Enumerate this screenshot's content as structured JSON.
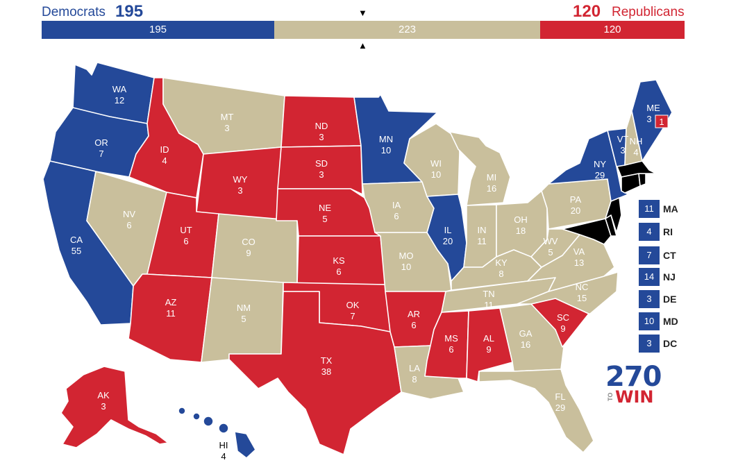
{
  "header": {
    "dem_name": "Democrats",
    "dem_total": "195",
    "rep_total": "120",
    "rep_name": "Republicans"
  },
  "bar": {
    "dem": "195",
    "tossup": "223",
    "rep": "120"
  },
  "colors": {
    "dem": "#244999",
    "rep": "#d22532",
    "tossup": "#c9bf9c"
  },
  "states": {
    "WA": {
      "abbr": "WA",
      "ev": "12",
      "party": "dem"
    },
    "OR": {
      "abbr": "OR",
      "ev": "7",
      "party": "dem"
    },
    "CA": {
      "abbr": "CA",
      "ev": "55",
      "party": "dem"
    },
    "ID": {
      "abbr": "ID",
      "ev": "4",
      "party": "rep"
    },
    "NV": {
      "abbr": "NV",
      "ev": "6",
      "party": "tossup"
    },
    "MT": {
      "abbr": "MT",
      "ev": "3",
      "party": "tossup"
    },
    "WY": {
      "abbr": "WY",
      "ev": "3",
      "party": "rep"
    },
    "UT": {
      "abbr": "UT",
      "ev": "6",
      "party": "rep"
    },
    "AZ": {
      "abbr": "AZ",
      "ev": "11",
      "party": "rep"
    },
    "CO": {
      "abbr": "CO",
      "ev": "9",
      "party": "tossup"
    },
    "NM": {
      "abbr": "NM",
      "ev": "5",
      "party": "tossup"
    },
    "ND": {
      "abbr": "ND",
      "ev": "3",
      "party": "rep"
    },
    "SD": {
      "abbr": "SD",
      "ev": "3",
      "party": "rep"
    },
    "NE": {
      "abbr": "NE",
      "ev": "5",
      "party": "rep"
    },
    "KS": {
      "abbr": "KS",
      "ev": "6",
      "party": "rep"
    },
    "OK": {
      "abbr": "OK",
      "ev": "7",
      "party": "rep"
    },
    "TX": {
      "abbr": "TX",
      "ev": "38",
      "party": "rep"
    },
    "MN": {
      "abbr": "MN",
      "ev": "10",
      "party": "dem"
    },
    "IA": {
      "abbr": "IA",
      "ev": "6",
      "party": "tossup"
    },
    "MO": {
      "abbr": "MO",
      "ev": "10",
      "party": "tossup"
    },
    "AR": {
      "abbr": "AR",
      "ev": "6",
      "party": "rep"
    },
    "LA": {
      "abbr": "LA",
      "ev": "8",
      "party": "tossup"
    },
    "WI": {
      "abbr": "WI",
      "ev": "10",
      "party": "tossup"
    },
    "IL": {
      "abbr": "IL",
      "ev": "20",
      "party": "dem"
    },
    "MI": {
      "abbr": "MI",
      "ev": "16",
      "party": "tossup"
    },
    "IN": {
      "abbr": "IN",
      "ev": "11",
      "party": "tossup"
    },
    "OH": {
      "abbr": "OH",
      "ev": "18",
      "party": "tossup"
    },
    "KY": {
      "abbr": "KY",
      "ev": "8",
      "party": "tossup"
    },
    "TN": {
      "abbr": "TN",
      "ev": "11",
      "party": "tossup"
    },
    "MS": {
      "abbr": "MS",
      "ev": "6",
      "party": "rep"
    },
    "AL": {
      "abbr": "AL",
      "ev": "9",
      "party": "rep"
    },
    "GA": {
      "abbr": "GA",
      "ev": "16",
      "party": "tossup"
    },
    "FL": {
      "abbr": "FL",
      "ev": "29",
      "party": "tossup"
    },
    "SC": {
      "abbr": "SC",
      "ev": "9",
      "party": "rep"
    },
    "NC": {
      "abbr": "NC",
      "ev": "15",
      "party": "tossup"
    },
    "VA": {
      "abbr": "VA",
      "ev": "13",
      "party": "tossup"
    },
    "WV": {
      "abbr": "WV",
      "ev": "5",
      "party": "tossup"
    },
    "PA": {
      "abbr": "PA",
      "ev": "20",
      "party": "tossup"
    },
    "NY": {
      "abbr": "NY",
      "ev": "29",
      "party": "dem"
    },
    "VT": {
      "abbr": "VT",
      "ev": "3",
      "party": "dem"
    },
    "NH": {
      "abbr": "NH",
      "ev": "4",
      "party": "tossup"
    },
    "ME": {
      "abbr": "ME",
      "ev": "3",
      "party": "dem",
      "split_ev": "1"
    },
    "AK": {
      "abbr": "AK",
      "ev": "3",
      "party": "rep"
    },
    "HI": {
      "abbr": "HI",
      "ev": "4",
      "party": "dem"
    }
  },
  "legend": [
    {
      "ev": "11",
      "abbr": "MA"
    },
    {
      "ev": "4",
      "abbr": "RI"
    },
    {
      "ev": "7",
      "abbr": "CT"
    },
    {
      "ev": "14",
      "abbr": "NJ"
    },
    {
      "ev": "3",
      "abbr": "DE"
    },
    {
      "ev": "10",
      "abbr": "MD"
    },
    {
      "ev": "3",
      "abbr": "DC"
    }
  ],
  "logo": {
    "number": "270",
    "to": "TO",
    "win": "WIN"
  }
}
